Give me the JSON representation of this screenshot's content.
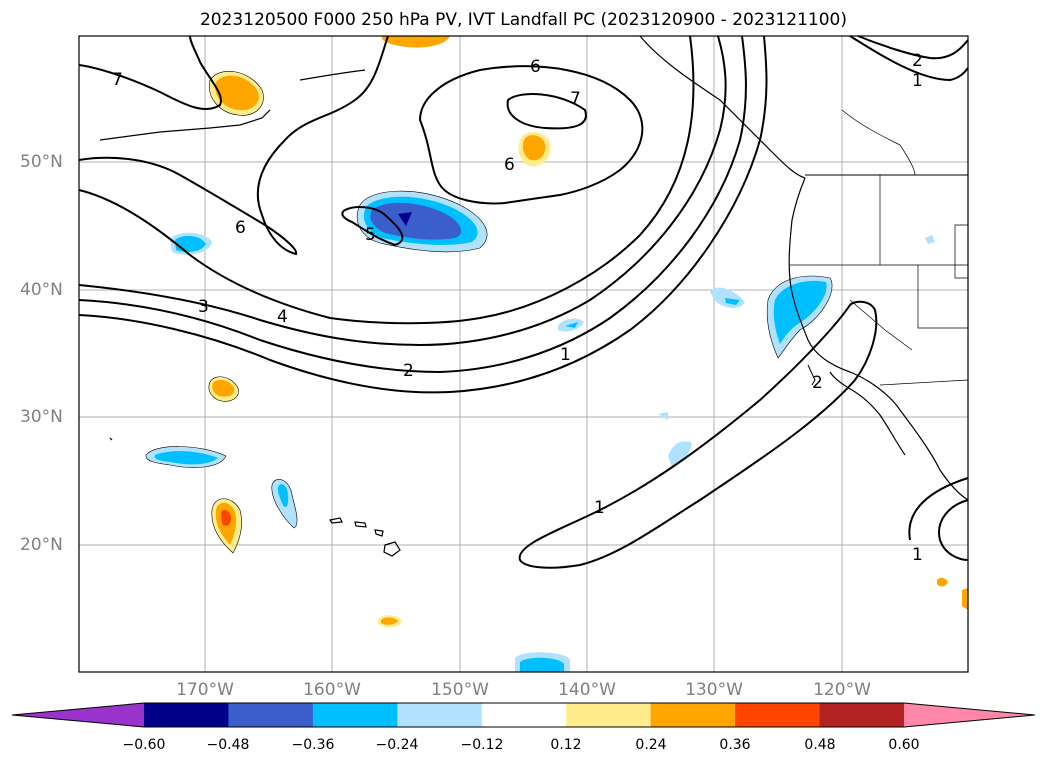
{
  "title": "2023120500 F000 250 hPa PV, IVT Landfall PC (2023120900 - 2023121100)",
  "lat_labels": [
    "50°N",
    "40°N",
    "30°N",
    "20°N"
  ],
  "lon_labels": [
    "170°W",
    "160°W",
    "150°W",
    "140°W",
    "130°W",
    "120°W"
  ],
  "contour_labels": [
    "7",
    "6",
    "7",
    "6",
    "6",
    "5",
    "3",
    "4",
    "2",
    "1",
    "1",
    "2",
    "1",
    "2",
    "1"
  ],
  "colorbar": {
    "ticks": [
      "−0.60",
      "−0.48",
      "−0.36",
      "−0.24",
      "−0.12",
      "0.12",
      "0.24",
      "0.36",
      "0.48",
      "0.60"
    ],
    "colors": [
      "#9933cc",
      "#00008b",
      "#3a5fcd",
      "#00bfff",
      "#b0e2ff",
      "#ffffff",
      "#ffec8b",
      "#ffa500",
      "#ff4500",
      "#b22222",
      "#ff88aa"
    ]
  },
  "colors": {
    "grid": "#b0b0b0",
    "contour": "#000000",
    "coast": "#000000"
  }
}
